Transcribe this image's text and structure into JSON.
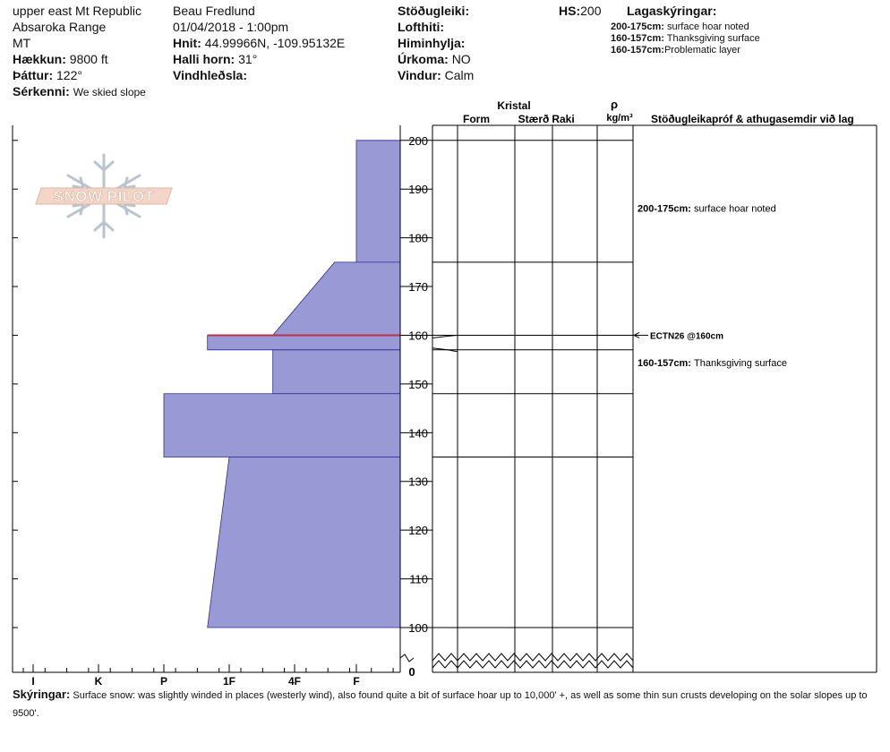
{
  "header": {
    "location": "upper east Mt Republic",
    "range": "Absaroka Range",
    "state": "MT",
    "elevation_label": "Hækkun:",
    "elevation_value": "9800 ft",
    "aspect_label": "Þáttur:",
    "aspect_value": "122°",
    "features_label": "Sérkenni:",
    "features_value": "We skied slope",
    "observer": "Beau  Fredlund",
    "datetime": "01/04/2018 - 1:00pm",
    "coords_label": "Hnit:",
    "coords_value": "44.99966N, -109.95132E",
    "slope_label": "Halli horn:",
    "slope_value": "31°",
    "wind_loading_label": "Vindhleðsla:",
    "stability_label": "Stöðugleiki:",
    "air_temp_label": "Lofthiti:",
    "sky_label": "Himinhylja:",
    "precip_label": "Úrkoma:",
    "precip_value": "NO",
    "wind_label": "Vindur:",
    "wind_value": "Calm",
    "hs_label": "HS:",
    "hs_value": "200"
  },
  "legend": {
    "title": "Lagaskýringar:",
    "items": [
      {
        "range": "200-175cm:",
        "text": "surface hoar noted"
      },
      {
        "range": "160-157cm:",
        "text": "Thanksgiving surface"
      },
      {
        "range": "160-157cm:",
        "text": "Problematic layer"
      }
    ]
  },
  "logo_text": "SNOW PILOT",
  "footer": {
    "label": "Skýringar:",
    "text": "Surface snow: was slightly winded in places (westerly wind), also found quite a bit of surface hoar up to 10,000' +, as well as some thin sun crusts developing on the solar slopes up to 9500'."
  },
  "chart_data": {
    "type": "snow_profile",
    "hardness_labels": [
      "I",
      "K",
      "P",
      "1F",
      "4F",
      "F"
    ],
    "depth_ticks": [
      100,
      110,
      120,
      130,
      140,
      150,
      160,
      170,
      180,
      190,
      200
    ],
    "depth_break_label": "0",
    "column_headers": {
      "crystal": "Kristal",
      "form": "Form",
      "size": "Stærð",
      "moisture": "Raki",
      "density_symbol": "ρ",
      "density_unit": "kg/m³",
      "comments": "Stöðugleikapróf & athugasemdir við lag"
    },
    "layer_boundaries": [
      200,
      175,
      160,
      157,
      148,
      135,
      100
    ],
    "hardness_profile": [
      {
        "top": 200,
        "bottom": 175,
        "hardness_top": "F",
        "hardness_bottom": "F"
      },
      {
        "top": 175,
        "bottom": 160,
        "hardness_top": "F-",
        "hardness_bottom": "4F-"
      },
      {
        "top": 160,
        "bottom": 157,
        "hardness_top": "1F-",
        "hardness_bottom": "1F-"
      },
      {
        "top": 157,
        "bottom": 148,
        "hardness_top": "4F-",
        "hardness_bottom": "4F-"
      },
      {
        "top": 148,
        "bottom": 135,
        "hardness_top": "P",
        "hardness_bottom": "P"
      },
      {
        "top": 135,
        "bottom": 100,
        "hardness_top": "1F",
        "hardness_bottom": "1F-"
      }
    ],
    "problem_layer_depth": 160,
    "layer_comments": [
      {
        "depth": 190,
        "range": "200-175cm:",
        "text": "surface hoar noted"
      },
      {
        "depth": 157,
        "range": "160-157cm:",
        "text": "Thanksgiving surface"
      }
    ],
    "stability_tests": [
      {
        "depth": 160,
        "text": "ECTN26 @160cm"
      }
    ],
    "colors": {
      "layer_fill": "#9999d6",
      "layer_stroke": "#2b2b99",
      "problem_layer": "#b8324a"
    }
  }
}
